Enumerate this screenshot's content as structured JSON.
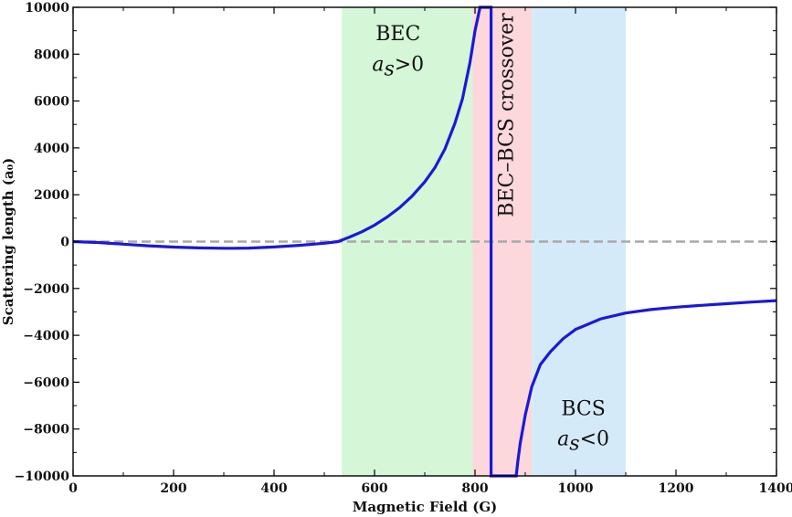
{
  "chart_data": {
    "type": "line",
    "title": "",
    "xlabel": "Magnetic Field (G)",
    "ylabel": "Scattering length (a₀)",
    "xlim": [
      0,
      1400
    ],
    "ylim": [
      -10000,
      10000
    ],
    "xticks": [
      0,
      200,
      400,
      600,
      800,
      1000,
      1200,
      1400
    ],
    "yticks": [
      -10000,
      -8000,
      -6000,
      -4000,
      -2000,
      0,
      2000,
      4000,
      6000,
      8000,
      10000
    ],
    "xtick_labels": [
      "0",
      "200",
      "400",
      "600",
      "800",
      "1000",
      "1200",
      "1400"
    ],
    "ytick_labels": [
      "−10000",
      "−8000",
      "−6000",
      "−4000",
      "−2000",
      "0",
      "2000",
      "4000",
      "6000",
      "8000",
      "10000"
    ],
    "grid": false,
    "reference_line": {
      "y": 0,
      "style": "dashed",
      "color": "#a8a8a8"
    },
    "regions": [
      {
        "name": "BEC",
        "x_range": [
          535,
          795
        ],
        "color": "#d5f7d7",
        "label_line1": "BEC",
        "label_line2_var": "a",
        "label_line2_sub": "s",
        "label_line2_rel": ">0"
      },
      {
        "name": "crossover",
        "x_range": [
          795,
          913
        ],
        "color": "#fcd7dc",
        "label": "BEC–BCS crossover"
      },
      {
        "name": "BCS",
        "x_range": [
          913,
          1100
        ],
        "color": "#d5eaf9",
        "label_line1": "BCS",
        "label_line2_var": "a",
        "label_line2_sub": "s",
        "label_line2_rel": "<0"
      }
    ],
    "series": [
      {
        "name": "scattering length",
        "color": "#1a1ad6",
        "x": [
          0,
          50,
          100,
          150,
          200,
          250,
          300,
          320,
          350,
          400,
          450,
          500,
          527,
          550,
          575,
          600,
          625,
          650,
          675,
          700,
          720,
          740,
          760,
          775,
          790,
          800,
          810,
          815,
          820,
          832,
          832,
          835,
          882,
          885,
          890,
          900,
          913,
          930,
          950,
          975,
          1000,
          1050,
          1100,
          1150,
          1200,
          1250,
          1300,
          1350,
          1400
        ],
        "y": [
          0,
          -40,
          -110,
          -180,
          -235,
          -270,
          -285,
          -285,
          -275,
          -230,
          -160,
          -70,
          0,
          190,
          420,
          700,
          1050,
          1450,
          1950,
          2550,
          3150,
          3950,
          5050,
          6100,
          7650,
          9000,
          10000,
          10000,
          10000,
          10000,
          -10000,
          -10000,
          -10000,
          -9400,
          -8600,
          -7400,
          -6200,
          -5250,
          -4700,
          -4150,
          -3750,
          -3300,
          -3050,
          -2900,
          -2800,
          -2720,
          -2650,
          -2580,
          -2520
        ]
      }
    ]
  }
}
